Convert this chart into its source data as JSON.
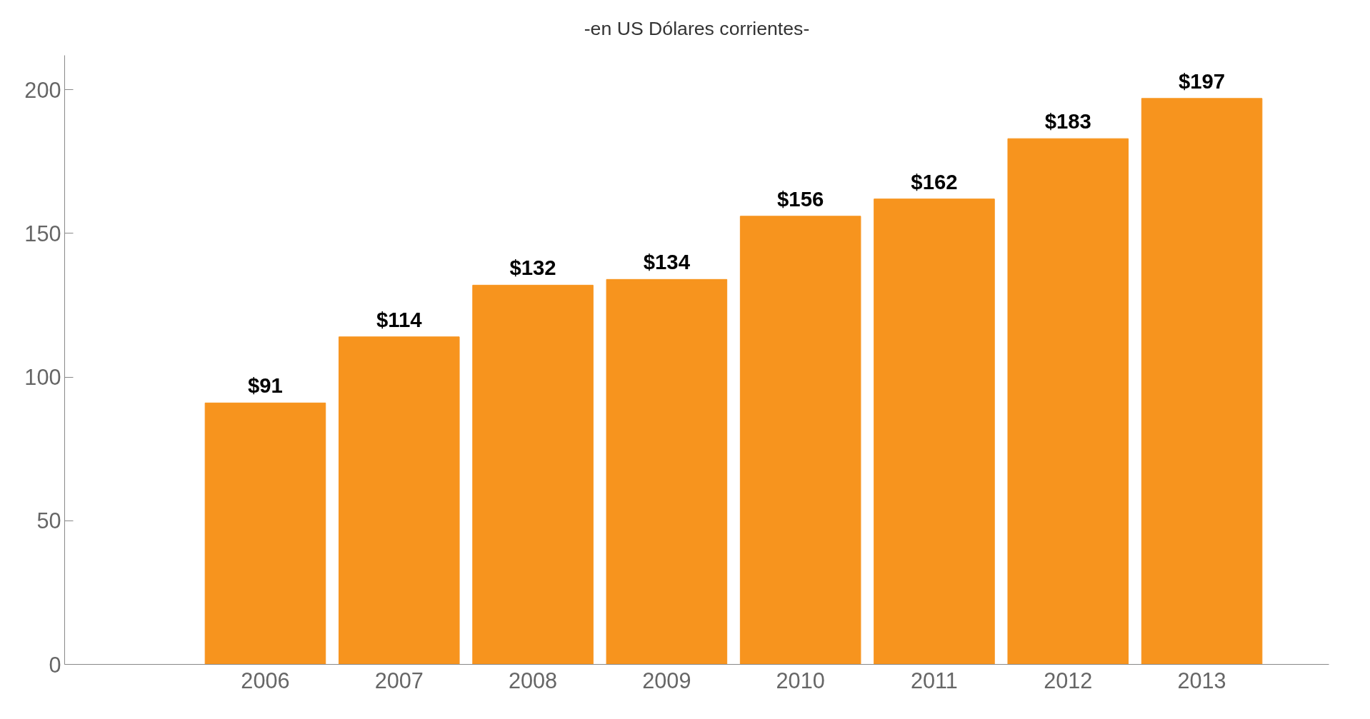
{
  "chart_data": {
    "type": "bar",
    "subtitle": "-en US Dólares corrientes-",
    "categories": [
      null,
      "2006",
      "2007",
      "2008",
      "2009",
      "2010",
      "2011",
      "2012",
      "2013"
    ],
    "values": [
      null,
      91,
      114,
      132,
      134,
      156,
      162,
      183,
      197
    ],
    "value_labels": [
      null,
      "$91",
      "$114",
      "$132",
      "$134",
      "$156",
      "$162",
      "$183",
      "$197"
    ],
    "color": "#f7941e",
    "ylim": [
      0,
      212
    ],
    "yticks": [
      0,
      50,
      100,
      150,
      200
    ],
    "grid": false
  }
}
